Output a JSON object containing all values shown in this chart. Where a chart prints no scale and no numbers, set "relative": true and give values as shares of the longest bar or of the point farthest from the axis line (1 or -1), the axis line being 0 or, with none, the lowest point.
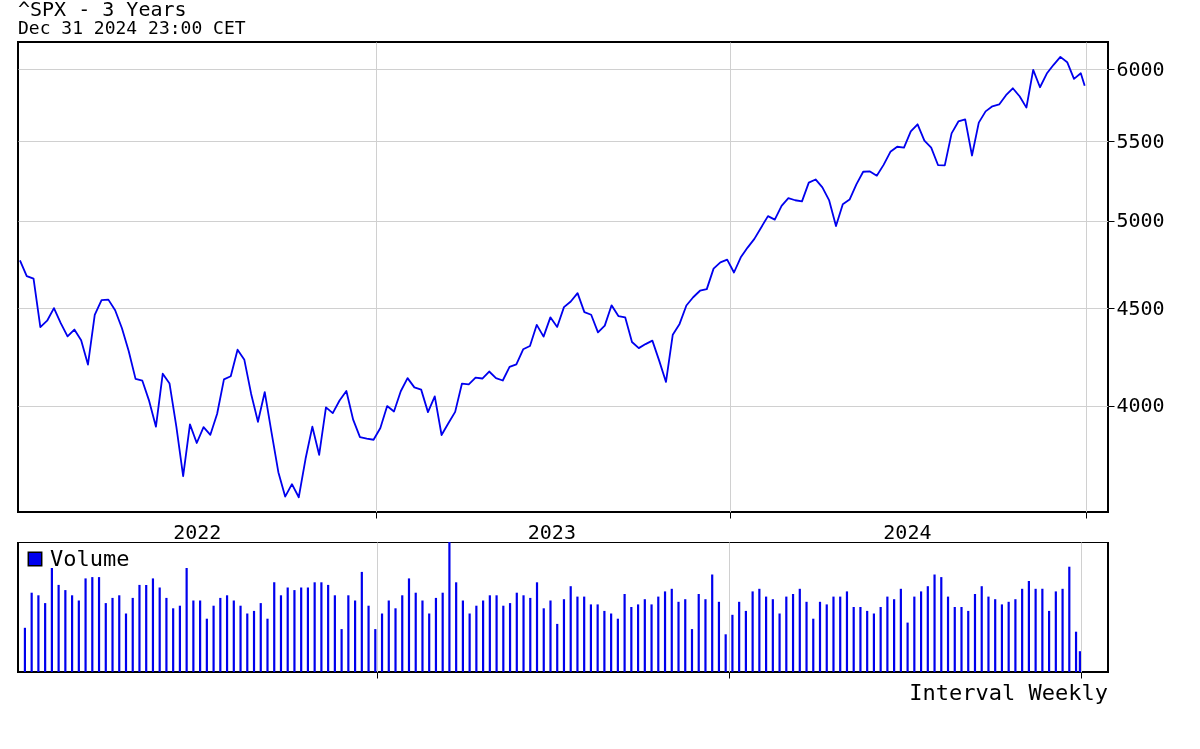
{
  "chart_data": [
    {
      "type": "line",
      "title": "^SPX - 3 Years",
      "subtitle": "Dec 31 2024 23:00 CET",
      "x": [
        "2021-12-31",
        "2022-01-07",
        "2022-01-14",
        "2022-01-21",
        "2022-01-28",
        "2022-02-04",
        "2022-02-11",
        "2022-02-18",
        "2022-02-25",
        "2022-03-04",
        "2022-03-11",
        "2022-03-18",
        "2022-03-25",
        "2022-04-01",
        "2022-04-08",
        "2022-04-15",
        "2022-04-22",
        "2022-04-29",
        "2022-05-06",
        "2022-05-13",
        "2022-05-20",
        "2022-05-27",
        "2022-06-03",
        "2022-06-10",
        "2022-06-17",
        "2022-06-24",
        "2022-07-01",
        "2022-07-08",
        "2022-07-15",
        "2022-07-22",
        "2022-07-29",
        "2022-08-05",
        "2022-08-12",
        "2022-08-19",
        "2022-08-26",
        "2022-09-02",
        "2022-09-09",
        "2022-09-16",
        "2022-09-23",
        "2022-09-30",
        "2022-10-07",
        "2022-10-14",
        "2022-10-21",
        "2022-10-28",
        "2022-11-04",
        "2022-11-11",
        "2022-11-18",
        "2022-11-25",
        "2022-12-02",
        "2022-12-09",
        "2022-12-16",
        "2022-12-23",
        "2022-12-30",
        "2023-01-06",
        "2023-01-13",
        "2023-01-20",
        "2023-01-27",
        "2023-02-03",
        "2023-02-10",
        "2023-02-17",
        "2023-02-24",
        "2023-03-03",
        "2023-03-10",
        "2023-03-17",
        "2023-03-24",
        "2023-03-31",
        "2023-04-07",
        "2023-04-14",
        "2023-04-21",
        "2023-04-28",
        "2023-05-05",
        "2023-05-12",
        "2023-05-19",
        "2023-05-26",
        "2023-06-02",
        "2023-06-09",
        "2023-06-16",
        "2023-06-23",
        "2023-06-30",
        "2023-07-07",
        "2023-07-14",
        "2023-07-21",
        "2023-07-28",
        "2023-08-04",
        "2023-08-11",
        "2023-08-18",
        "2023-08-25",
        "2023-09-01",
        "2023-09-08",
        "2023-09-15",
        "2023-09-22",
        "2023-09-29",
        "2023-10-06",
        "2023-10-13",
        "2023-10-20",
        "2023-10-27",
        "2023-11-03",
        "2023-11-10",
        "2023-11-17",
        "2023-11-24",
        "2023-12-01",
        "2023-12-08",
        "2023-12-15",
        "2023-12-22",
        "2023-12-29",
        "2024-01-05",
        "2024-01-12",
        "2024-01-19",
        "2024-01-26",
        "2024-02-02",
        "2024-02-09",
        "2024-02-16",
        "2024-02-23",
        "2024-03-01",
        "2024-03-08",
        "2024-03-15",
        "2024-03-22",
        "2024-03-29",
        "2024-04-05",
        "2024-04-12",
        "2024-04-19",
        "2024-04-26",
        "2024-05-03",
        "2024-05-10",
        "2024-05-17",
        "2024-05-24",
        "2024-05-31",
        "2024-06-07",
        "2024-06-14",
        "2024-06-21",
        "2024-06-28",
        "2024-07-05",
        "2024-07-12",
        "2024-07-19",
        "2024-07-26",
        "2024-08-02",
        "2024-08-09",
        "2024-08-16",
        "2024-08-23",
        "2024-08-30",
        "2024-09-06",
        "2024-09-13",
        "2024-09-20",
        "2024-09-27",
        "2024-10-04",
        "2024-10-11",
        "2024-10-18",
        "2024-10-25",
        "2024-11-01",
        "2024-11-08",
        "2024-11-15",
        "2024-11-22",
        "2024-11-29",
        "2024-12-06",
        "2024-12-13",
        "2024-12-20",
        "2024-12-27",
        "2024-12-31"
      ],
      "series": [
        {
          "color": "#0000ee",
          "values": [
            4766,
            4677,
            4662,
            4398,
            4432,
            4500,
            4419,
            4349,
            4385,
            4329,
            4204,
            4463,
            4543,
            4546,
            4488,
            4392,
            4272,
            4132,
            4123,
            4024,
            3901,
            4158,
            4109,
            3901,
            3675,
            3912,
            3825,
            3899,
            3863,
            3962,
            4130,
            4145,
            4280,
            4228,
            4058,
            3924,
            4067,
            3873,
            3693,
            3586,
            3640,
            3583,
            3753,
            3901,
            3771,
            3993,
            3965,
            4026,
            4072,
            3934,
            3852,
            3845,
            3840,
            3895,
            3999,
            3973,
            4071,
            4136,
            4090,
            4079,
            3970,
            4046,
            3862,
            3917,
            3971,
            4109,
            4105,
            4138,
            4134,
            4169,
            4136,
            4124,
            4192,
            4205,
            4282,
            4299,
            4410,
            4348,
            4450,
            4399,
            4505,
            4536,
            4582,
            4478,
            4464,
            4370,
            4406,
            4515,
            4457,
            4450,
            4320,
            4288,
            4309,
            4327,
            4224,
            4117,
            4358,
            4415,
            4514,
            4559,
            4595,
            4604,
            4719,
            4755,
            4770,
            4697,
            4784,
            4840,
            4891,
            4959,
            5027,
            5006,
            5089,
            5137,
            5124,
            5117,
            5234,
            5254,
            5204,
            5123,
            4967,
            5100,
            5128,
            5223,
            5303,
            5305,
            5278,
            5347,
            5432,
            5465,
            5460,
            5567,
            5615,
            5505,
            5459,
            5346,
            5344,
            5554,
            5634,
            5648,
            5408,
            5626,
            5703,
            5738,
            5751,
            5815,
            5864,
            5808,
            5729,
            5995,
            5871,
            5969,
            6032,
            6090,
            6051,
            5931,
            5971,
            5882
          ]
        }
      ],
      "log": true,
      "ylim": [
        3520,
        6200
      ],
      "yticks": [
        4000,
        4500,
        5000,
        5500,
        6000
      ],
      "xlim": [
        "2021-12-29",
        "2025-01-24"
      ],
      "xticks": [
        {
          "value": "2022-07-01",
          "label": "2022"
        },
        {
          "value": "2023-01-01",
          "label": null
        },
        {
          "value": "2023-07-01",
          "label": "2023"
        },
        {
          "value": "2024-01-01",
          "label": null
        },
        {
          "value": "2024-07-01",
          "label": "2024"
        },
        {
          "value": "2025-01-01",
          "label": null
        }
      ],
      "grid": true
    },
    {
      "type": "bar",
      "relative": true,
      "x": [
        "2021-12-31",
        "2022-01-07",
        "2022-01-14",
        "2022-01-21",
        "2022-01-28",
        "2022-02-04",
        "2022-02-11",
        "2022-02-18",
        "2022-02-25",
        "2022-03-04",
        "2022-03-11",
        "2022-03-18",
        "2022-03-25",
        "2022-04-01",
        "2022-04-08",
        "2022-04-15",
        "2022-04-22",
        "2022-04-29",
        "2022-05-06",
        "2022-05-13",
        "2022-05-20",
        "2022-05-27",
        "2022-06-03",
        "2022-06-10",
        "2022-06-17",
        "2022-06-24",
        "2022-07-01",
        "2022-07-08",
        "2022-07-15",
        "2022-07-22",
        "2022-07-29",
        "2022-08-05",
        "2022-08-12",
        "2022-08-19",
        "2022-08-26",
        "2022-09-02",
        "2022-09-09",
        "2022-09-16",
        "2022-09-23",
        "2022-09-30",
        "2022-10-07",
        "2022-10-14",
        "2022-10-21",
        "2022-10-28",
        "2022-11-04",
        "2022-11-11",
        "2022-11-18",
        "2022-11-25",
        "2022-12-02",
        "2022-12-09",
        "2022-12-16",
        "2022-12-23",
        "2022-12-30",
        "2023-01-06",
        "2023-01-13",
        "2023-01-20",
        "2023-01-27",
        "2023-02-03",
        "2023-02-10",
        "2023-02-17",
        "2023-02-24",
        "2023-03-03",
        "2023-03-10",
        "2023-03-17",
        "2023-03-24",
        "2023-03-31",
        "2023-04-07",
        "2023-04-14",
        "2023-04-21",
        "2023-04-28",
        "2023-05-05",
        "2023-05-12",
        "2023-05-19",
        "2023-05-26",
        "2023-06-02",
        "2023-06-09",
        "2023-06-16",
        "2023-06-23",
        "2023-06-30",
        "2023-07-07",
        "2023-07-14",
        "2023-07-21",
        "2023-07-28",
        "2023-08-04",
        "2023-08-11",
        "2023-08-18",
        "2023-08-25",
        "2023-09-01",
        "2023-09-08",
        "2023-09-15",
        "2023-09-22",
        "2023-09-29",
        "2023-10-06",
        "2023-10-13",
        "2023-10-20",
        "2023-10-27",
        "2023-11-03",
        "2023-11-10",
        "2023-11-17",
        "2023-11-24",
        "2023-12-01",
        "2023-12-08",
        "2023-12-15",
        "2023-12-22",
        "2023-12-29",
        "2024-01-05",
        "2024-01-12",
        "2024-01-19",
        "2024-01-26",
        "2024-02-02",
        "2024-02-09",
        "2024-02-16",
        "2024-02-23",
        "2024-03-01",
        "2024-03-08",
        "2024-03-15",
        "2024-03-22",
        "2024-03-29",
        "2024-04-05",
        "2024-04-12",
        "2024-04-19",
        "2024-04-26",
        "2024-05-03",
        "2024-05-10",
        "2024-05-17",
        "2024-05-24",
        "2024-05-31",
        "2024-06-07",
        "2024-06-14",
        "2024-06-21",
        "2024-06-28",
        "2024-07-05",
        "2024-07-12",
        "2024-07-19",
        "2024-07-26",
        "2024-08-02",
        "2024-08-09",
        "2024-08-16",
        "2024-08-23",
        "2024-08-30",
        "2024-09-06",
        "2024-09-13",
        "2024-09-20",
        "2024-09-27",
        "2024-10-04",
        "2024-10-11",
        "2024-10-18",
        "2024-10-25",
        "2024-11-01",
        "2024-11-08",
        "2024-11-15",
        "2024-11-22",
        "2024-11-29",
        "2024-12-06",
        "2024-12-13",
        "2024-12-20",
        "2024-12-27",
        "2024-12-31"
      ],
      "series": [
        {
          "name": "Volume",
          "color": "#0000ee",
          "values": [
            0.34,
            0.61,
            0.59,
            0.53,
            0.8,
            0.67,
            0.63,
            0.59,
            0.55,
            0.72,
            0.73,
            0.73,
            0.53,
            0.57,
            0.59,
            0.45,
            0.57,
            0.67,
            0.67,
            0.72,
            0.65,
            0.57,
            0.49,
            0.51,
            0.8,
            0.55,
            0.55,
            0.41,
            0.51,
            0.57,
            0.59,
            0.55,
            0.51,
            0.45,
            0.47,
            0.53,
            0.41,
            0.69,
            0.59,
            0.65,
            0.63,
            0.65,
            0.65,
            0.69,
            0.69,
            0.67,
            0.59,
            0.33,
            0.59,
            0.55,
            0.77,
            0.51,
            0.33,
            0.45,
            0.55,
            0.49,
            0.59,
            0.72,
            0.61,
            0.55,
            0.45,
            0.57,
            0.61,
            1,
            0.69,
            0.55,
            0.45,
            0.51,
            0.55,
            0.59,
            0.59,
            0.51,
            0.53,
            0.61,
            0.59,
            0.57,
            0.69,
            0.49,
            0.55,
            0.37,
            0.56,
            0.66,
            0.58,
            0.58,
            0.52,
            0.52,
            0.47,
            0.45,
            0.41,
            0.6,
            0.5,
            0.52,
            0.56,
            0.52,
            0.58,
            0.62,
            0.64,
            0.54,
            0.56,
            0.33,
            0.6,
            0.56,
            0.75,
            0.54,
            0.29,
            0.44,
            0.54,
            0.47,
            0.62,
            0.64,
            0.58,
            0.56,
            0.45,
            0.58,
            0.6,
            0.64,
            0.54,
            0.41,
            0.54,
            0.52,
            0.58,
            0.58,
            0.62,
            0.5,
            0.5,
            0.47,
            0.45,
            0.5,
            0.58,
            0.56,
            0.64,
            0.38,
            0.58,
            0.62,
            0.66,
            0.75,
            0.73,
            0.58,
            0.5,
            0.5,
            0.47,
            0.6,
            0.66,
            0.58,
            0.56,
            0.52,
            0.54,
            0.56,
            0.64,
            0.7,
            0.64,
            0.64,
            0.47,
            0.62,
            0.64,
            0.81,
            0.31,
            0.16
          ]
        }
      ],
      "xlim": [
        "2021-12-29",
        "2025-01-24"
      ],
      "xticks": [
        {
          "value": "2023-01-01",
          "label": null
        },
        {
          "value": "2024-01-01",
          "label": null
        },
        {
          "value": "2025-01-01",
          "label": null
        }
      ],
      "grid": "x",
      "tick_labels": false,
      "legend": "top left",
      "annotations": [
        "Interval Weekly"
      ]
    }
  ]
}
